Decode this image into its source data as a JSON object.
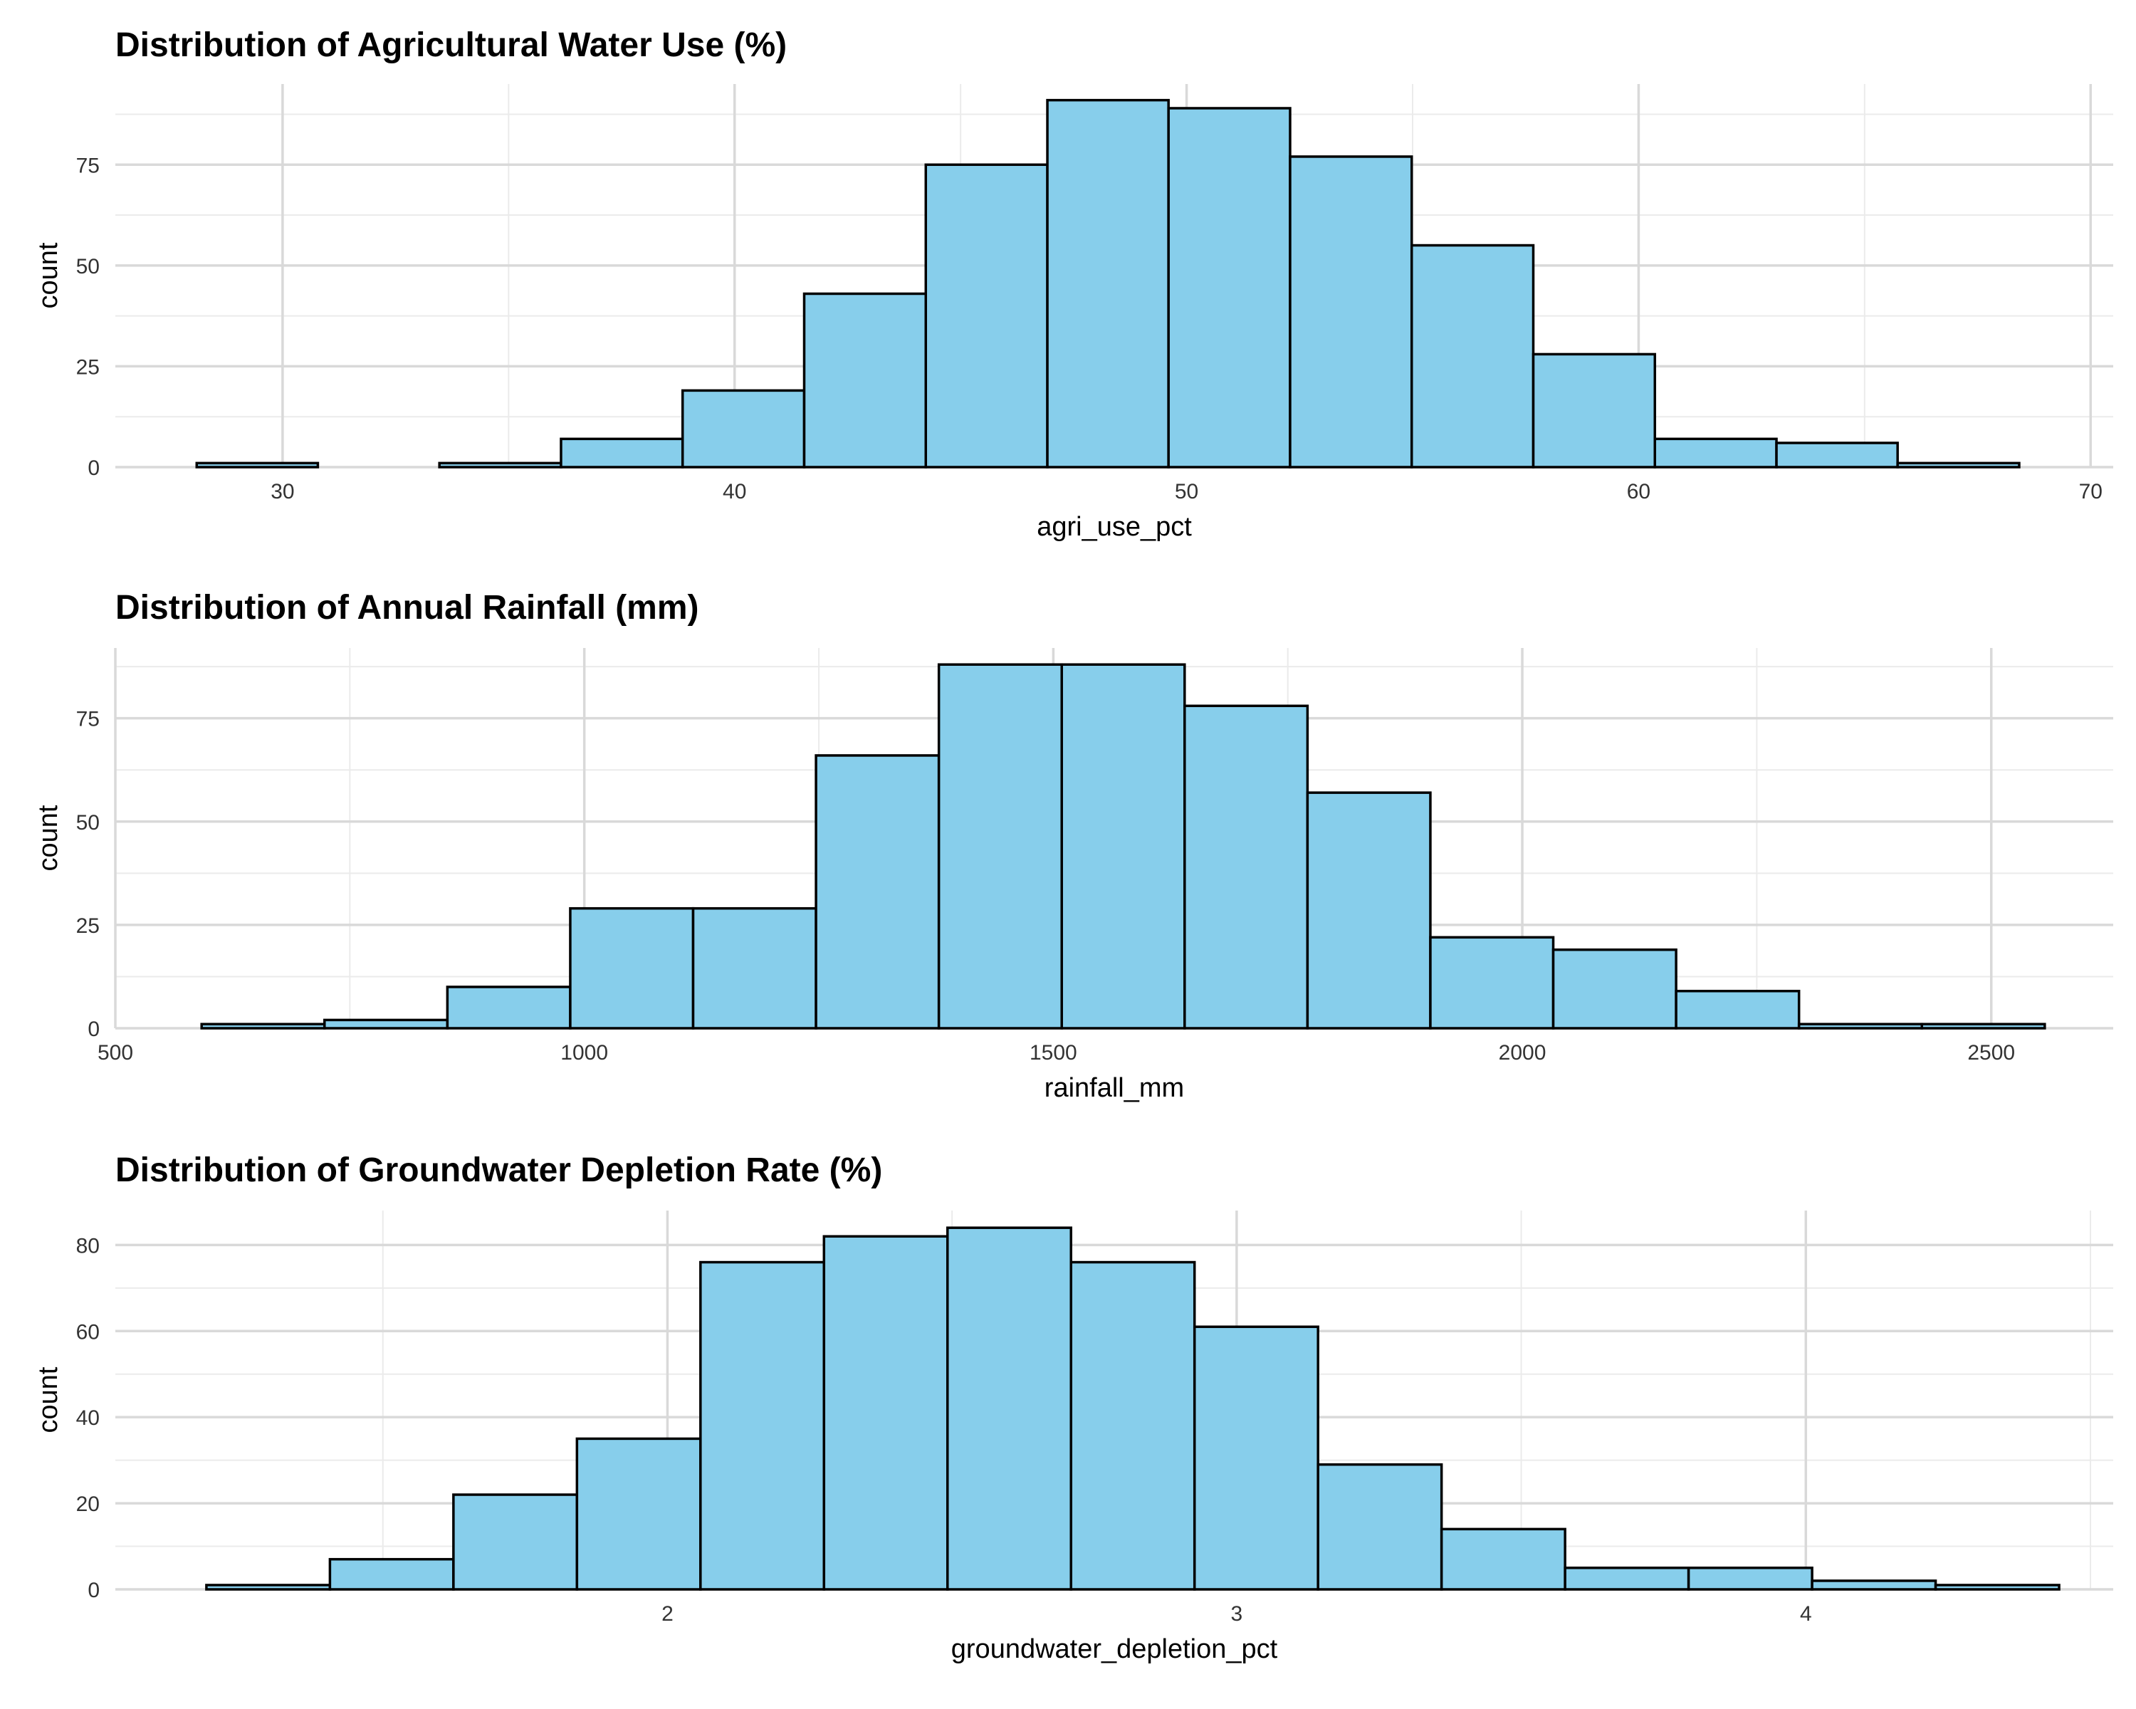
{
  "chart_data": [
    {
      "type": "bar",
      "title": "Distribution of Agricultural Water Use (%)",
      "xlabel": "agri_use_pct",
      "ylabel": "count",
      "xlim": [
        26.3,
        70.5
      ],
      "ylim": [
        0,
        95
      ],
      "x_major_ticks": [
        30,
        40,
        50,
        60,
        70
      ],
      "x_minor_ticks": [
        35,
        45,
        55,
        65
      ],
      "y_major_ticks": [
        0,
        25,
        50,
        75
      ],
      "y_minor_ticks": [
        12.5,
        37.5,
        62.5,
        87.5
      ],
      "bin_edges": [
        28.1,
        30.78,
        33.47,
        36.16,
        38.85,
        41.54,
        44.23,
        46.92,
        49.6,
        52.29,
        54.98,
        57.67,
        60.36,
        63.05,
        65.73,
        68.42
      ],
      "values": [
        1,
        0,
        1,
        7,
        19,
        43,
        75,
        91,
        89,
        77,
        55,
        28,
        7,
        6,
        1
      ],
      "grid": true,
      "fill_color": "#87CEEB",
      "edge_color": "#000000"
    },
    {
      "type": "bar",
      "title": "Distribution of Annual Rainfall (mm)",
      "xlabel": "rainfall_mm",
      "ylabel": "count",
      "xlim": [
        500,
        2630
      ],
      "ylim": [
        0,
        92
      ],
      "x_major_ticks": [
        500,
        1000,
        1500,
        2000,
        2500
      ],
      "x_minor_ticks": [
        750,
        1250,
        1750,
        2250
      ],
      "y_major_ticks": [
        0,
        25,
        50,
        75
      ],
      "y_minor_ticks": [
        12.5,
        37.5,
        62.5,
        87.5
      ],
      "bin_edges": [
        592,
        723,
        854,
        985,
        1116,
        1247,
        1378,
        1509,
        1640,
        1771,
        1902,
        2033,
        2164,
        2295,
        2426,
        2557
      ],
      "values": [
        1,
        2,
        10,
        29,
        29,
        66,
        88,
        88,
        78,
        57,
        22,
        19,
        9,
        1,
        1
      ],
      "grid": true,
      "fill_color": "#87CEEB",
      "edge_color": "#000000"
    },
    {
      "type": "bar",
      "title": "Distribution of Groundwater Depletion Rate (%)",
      "xlabel": "groundwater_depletion_pct",
      "ylabel": "count",
      "xlim": [
        1.03,
        4.54
      ],
      "ylim": [
        0,
        88
      ],
      "x_major_ticks": [
        2,
        3,
        4
      ],
      "x_minor_ticks": [
        1.5,
        2.5,
        3.5,
        4.5
      ],
      "y_major_ticks": [
        0,
        20,
        40,
        60,
        80
      ],
      "y_minor_ticks": [
        10,
        30,
        50,
        70
      ],
      "bin_edges": [
        1.19,
        1.407,
        1.624,
        1.841,
        2.058,
        2.275,
        2.492,
        2.709,
        2.926,
        3.143,
        3.36,
        3.577,
        3.794,
        4.011,
        4.228,
        4.445
      ],
      "values": [
        1,
        7,
        22,
        35,
        76,
        82,
        84,
        76,
        61,
        29,
        14,
        5,
        5,
        2,
        1
      ],
      "grid": true,
      "fill_color": "#87CEEB",
      "edge_color": "#000000"
    }
  ]
}
